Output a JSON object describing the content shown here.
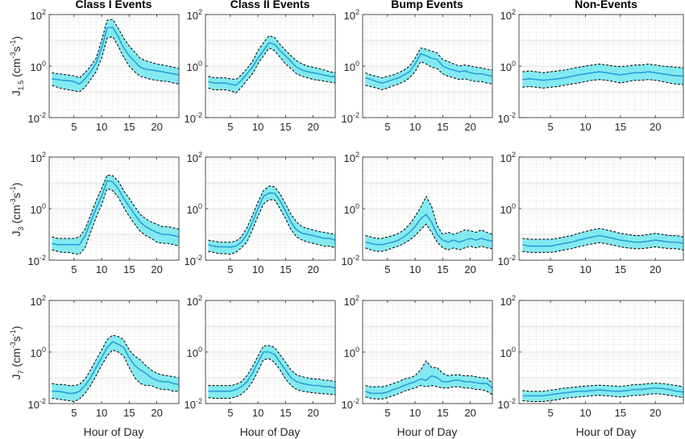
{
  "colors": {
    "band": "#6ee6ee",
    "line": "#2a9fd8",
    "bound": "#000000",
    "grid": "#d9d9d9",
    "axis": "#262626"
  },
  "column_titles": [
    "Class I Events",
    "Class II Events",
    "Bump Events",
    "Non-Events"
  ],
  "row_labels": [
    {
      "main": "J",
      "sub": "1.5",
      "unit_open": " (cm",
      "sup1": "-3",
      "mid": "s",
      "sup2": "-1",
      "close": ")"
    },
    {
      "main": "J",
      "sub": "3",
      "unit_open": " (cm",
      "sup1": "-3",
      "mid": "s",
      "sup2": "-1",
      "close": ")"
    },
    {
      "main": "J",
      "sub": "7",
      "unit_open": " (cm",
      "sup1": "-3",
      "mid": "s",
      "sup2": "-1",
      "close": ")"
    }
  ],
  "xlabel": "Hour of Day",
  "xticks": [
    "5",
    "10",
    "15",
    "20"
  ],
  "yticks": [
    {
      "base": "10",
      "exp": "2"
    },
    {
      "base": "10",
      "exp": "0"
    },
    {
      "base": "10",
      "exp": "-2"
    }
  ],
  "chart_data": {
    "type": "line",
    "x": [
      1,
      2,
      3,
      4,
      5,
      6,
      7,
      8,
      9,
      10,
      11,
      12,
      13,
      14,
      15,
      16,
      17,
      18,
      19,
      20,
      21,
      22,
      23,
      24
    ],
    "xlim": [
      0.5,
      24
    ],
    "ylim": [
      0.01,
      100
    ],
    "yscale": "log",
    "grid": true,
    "panels": [
      [
        {
          "median": [
            0.32,
            0.3,
            0.28,
            0.27,
            0.25,
            0.2,
            0.32,
            0.6,
            1.3,
            5,
            30,
            32,
            14,
            5,
            2.5,
            1.5,
            0.9,
            0.75,
            0.7,
            0.65,
            0.6,
            0.55,
            0.5,
            0.45
          ],
          "upper": [
            0.55,
            0.5,
            0.48,
            0.45,
            0.42,
            0.35,
            0.55,
            1.0,
            2.0,
            10,
            60,
            65,
            30,
            12,
            6,
            3.5,
            2.0,
            1.6,
            1.4,
            1.2,
            1.1,
            1.0,
            0.9,
            0.8
          ],
          "lower": [
            0.18,
            0.15,
            0.13,
            0.12,
            0.11,
            0.1,
            0.15,
            0.3,
            0.6,
            2,
            12,
            14,
            6,
            2.2,
            1.0,
            0.6,
            0.4,
            0.35,
            0.3,
            0.28,
            0.26,
            0.25,
            0.22,
            0.2
          ]
        },
        {
          "median": [
            0.25,
            0.22,
            0.22,
            0.22,
            0.2,
            0.18,
            0.28,
            0.5,
            0.9,
            2,
            4,
            8,
            7,
            4,
            2.5,
            1.5,
            0.9,
            0.7,
            0.6,
            0.55,
            0.5,
            0.45,
            0.4,
            0.38
          ],
          "upper": [
            0.4,
            0.35,
            0.35,
            0.35,
            0.32,
            0.3,
            0.45,
            0.8,
            1.5,
            4,
            8,
            15,
            13,
            7,
            4,
            2.5,
            1.6,
            1.2,
            1.0,
            0.9,
            0.8,
            0.7,
            0.6,
            0.55
          ],
          "lower": [
            0.14,
            0.12,
            0.12,
            0.12,
            0.11,
            0.09,
            0.15,
            0.28,
            0.5,
            1.2,
            2.5,
            5,
            4,
            2.2,
            1.2,
            0.8,
            0.5,
            0.4,
            0.35,
            0.3,
            0.28,
            0.26,
            0.24,
            0.22
          ]
        },
        {
          "median": [
            0.35,
            0.3,
            0.25,
            0.22,
            0.25,
            0.3,
            0.35,
            0.45,
            0.6,
            1.2,
            3,
            2.5,
            2,
            1.8,
            1,
            0.8,
            0.7,
            0.6,
            0.65,
            0.55,
            0.5,
            0.5,
            0.45,
            0.4
          ],
          "upper": [
            0.55,
            0.45,
            0.4,
            0.35,
            0.4,
            0.45,
            0.55,
            0.7,
            1.0,
            2.0,
            5,
            4.5,
            3.8,
            3.2,
            1.8,
            1.5,
            1.2,
            1.0,
            1.1,
            1.0,
            0.9,
            0.85,
            0.75,
            0.7
          ],
          "lower": [
            0.18,
            0.16,
            0.14,
            0.12,
            0.14,
            0.17,
            0.2,
            0.25,
            0.35,
            0.6,
            1.5,
            1.2,
            0.9,
            0.8,
            0.5,
            0.4,
            0.35,
            0.3,
            0.32,
            0.28,
            0.25,
            0.25,
            0.22,
            0.2
          ]
        },
        {
          "median": [
            0.3,
            0.32,
            0.3,
            0.28,
            0.3,
            0.32,
            0.35,
            0.4,
            0.45,
            0.5,
            0.55,
            0.6,
            0.55,
            0.5,
            0.45,
            0.5,
            0.55,
            0.55,
            0.6,
            0.55,
            0.5,
            0.45,
            0.42,
            0.4
          ],
          "upper": [
            0.6,
            0.65,
            0.6,
            0.55,
            0.6,
            0.65,
            0.7,
            0.8,
            0.9,
            1.0,
            1.1,
            1.2,
            1.1,
            1.0,
            0.95,
            1.0,
            1.1,
            1.1,
            1.2,
            1.1,
            1.0,
            0.95,
            0.9,
            0.85
          ],
          "lower": [
            0.15,
            0.16,
            0.15,
            0.14,
            0.15,
            0.16,
            0.18,
            0.2,
            0.22,
            0.25,
            0.28,
            0.3,
            0.28,
            0.25,
            0.22,
            0.25,
            0.28,
            0.28,
            0.3,
            0.28,
            0.25,
            0.22,
            0.2,
            0.19
          ]
        }
      ],
      [
        {
          "median": [
            0.045,
            0.04,
            0.04,
            0.04,
            0.04,
            0.04,
            0.09,
            0.3,
            1.0,
            3,
            12,
            11,
            6,
            2.5,
            1.2,
            0.6,
            0.3,
            0.2,
            0.15,
            0.12,
            0.1,
            0.1,
            0.09,
            0.08
          ],
          "upper": [
            0.08,
            0.07,
            0.07,
            0.07,
            0.07,
            0.08,
            0.16,
            0.55,
            2.0,
            6,
            20,
            19,
            12,
            5,
            2.5,
            1.2,
            0.6,
            0.4,
            0.3,
            0.25,
            0.2,
            0.2,
            0.18,
            0.16
          ],
          "lower": [
            0.025,
            0.022,
            0.02,
            0.02,
            0.018,
            0.017,
            0.03,
            0.12,
            0.45,
            1.4,
            6,
            5,
            2.8,
            1.1,
            0.5,
            0.25,
            0.13,
            0.09,
            0.07,
            0.05,
            0.045,
            0.045,
            0.04,
            0.035
          ]
        },
        {
          "median": [
            0.04,
            0.035,
            0.033,
            0.033,
            0.032,
            0.035,
            0.05,
            0.1,
            0.3,
            1,
            3,
            4,
            4,
            2,
            0.8,
            0.3,
            0.15,
            0.11,
            0.1,
            0.09,
            0.08,
            0.07,
            0.07,
            0.06
          ],
          "upper": [
            0.06,
            0.055,
            0.05,
            0.05,
            0.05,
            0.055,
            0.08,
            0.18,
            0.55,
            1.8,
            5,
            7.5,
            7,
            3.8,
            1.5,
            0.6,
            0.3,
            0.2,
            0.17,
            0.15,
            0.13,
            0.12,
            0.11,
            0.1
          ],
          "lower": [
            0.022,
            0.02,
            0.018,
            0.018,
            0.017,
            0.02,
            0.03,
            0.05,
            0.15,
            0.5,
            1.5,
            2.2,
            2.2,
            1.0,
            0.4,
            0.15,
            0.08,
            0.06,
            0.05,
            0.045,
            0.04,
            0.035,
            0.035,
            0.03
          ]
        },
        {
          "median": [
            0.05,
            0.045,
            0.04,
            0.04,
            0.045,
            0.05,
            0.06,
            0.08,
            0.12,
            0.2,
            0.4,
            0.6,
            0.3,
            0.1,
            0.06,
            0.05,
            0.06,
            0.05,
            0.06,
            0.07,
            0.06,
            0.07,
            0.06,
            0.055
          ],
          "upper": [
            0.09,
            0.08,
            0.07,
            0.07,
            0.08,
            0.09,
            0.11,
            0.15,
            0.25,
            0.5,
            1.1,
            3.0,
            1.2,
            0.22,
            0.1,
            0.12,
            0.1,
            0.12,
            0.15,
            0.14,
            0.12,
            0.15,
            0.12,
            0.1
          ],
          "lower": [
            0.03,
            0.025,
            0.022,
            0.022,
            0.025,
            0.03,
            0.035,
            0.045,
            0.06,
            0.09,
            0.15,
            0.25,
            0.12,
            0.05,
            0.03,
            0.025,
            0.03,
            0.025,
            0.03,
            0.035,
            0.03,
            0.035,
            0.03,
            0.028
          ]
        },
        {
          "median": [
            0.04,
            0.035,
            0.035,
            0.035,
            0.035,
            0.04,
            0.045,
            0.05,
            0.06,
            0.07,
            0.08,
            0.09,
            0.08,
            0.07,
            0.06,
            0.055,
            0.05,
            0.05,
            0.055,
            0.06,
            0.055,
            0.05,
            0.05,
            0.045
          ],
          "upper": [
            0.07,
            0.065,
            0.065,
            0.065,
            0.065,
            0.07,
            0.08,
            0.09,
            0.11,
            0.13,
            0.15,
            0.17,
            0.15,
            0.13,
            0.11,
            0.1,
            0.09,
            0.09,
            0.1,
            0.11,
            0.1,
            0.09,
            0.09,
            0.08
          ],
          "lower": [
            0.022,
            0.02,
            0.02,
            0.02,
            0.02,
            0.022,
            0.025,
            0.028,
            0.033,
            0.038,
            0.043,
            0.048,
            0.043,
            0.038,
            0.033,
            0.03,
            0.028,
            0.028,
            0.03,
            0.033,
            0.03,
            0.028,
            0.028,
            0.025
          ]
        }
      ],
      [
        {
          "median": [
            0.03,
            0.03,
            0.028,
            0.025,
            0.025,
            0.03,
            0.05,
            0.1,
            0.25,
            0.6,
            1.5,
            2.5,
            2,
            1.5,
            0.6,
            0.3,
            0.2,
            0.15,
            0.1,
            0.08,
            0.07,
            0.07,
            0.06,
            0.055
          ],
          "upper": [
            0.06,
            0.055,
            0.055,
            0.05,
            0.05,
            0.055,
            0.09,
            0.2,
            0.5,
            1.2,
            3.0,
            4.5,
            4,
            3.0,
            1.2,
            0.7,
            0.5,
            0.3,
            0.2,
            0.15,
            0.13,
            0.12,
            0.11,
            0.1
          ],
          "lower": [
            0.016,
            0.015,
            0.014,
            0.013,
            0.012,
            0.015,
            0.025,
            0.05,
            0.12,
            0.3,
            0.7,
            1.2,
            1.0,
            0.7,
            0.25,
            0.1,
            0.06,
            0.05,
            0.05,
            0.04,
            0.035,
            0.035,
            0.03,
            0.03
          ]
        },
        {
          "median": [
            0.03,
            0.03,
            0.03,
            0.03,
            0.03,
            0.035,
            0.045,
            0.07,
            0.15,
            0.4,
            1.0,
            1.0,
            0.8,
            0.4,
            0.2,
            0.1,
            0.07,
            0.06,
            0.055,
            0.05,
            0.05,
            0.045,
            0.045,
            0.04
          ],
          "upper": [
            0.05,
            0.05,
            0.05,
            0.05,
            0.05,
            0.055,
            0.07,
            0.12,
            0.27,
            0.7,
            1.7,
            1.8,
            1.5,
            0.8,
            0.4,
            0.2,
            0.13,
            0.11,
            0.1,
            0.09,
            0.09,
            0.08,
            0.08,
            0.07
          ],
          "lower": [
            0.017,
            0.016,
            0.016,
            0.016,
            0.016,
            0.018,
            0.023,
            0.035,
            0.07,
            0.18,
            0.5,
            0.55,
            0.4,
            0.2,
            0.09,
            0.05,
            0.035,
            0.03,
            0.028,
            0.026,
            0.025,
            0.024,
            0.023,
            0.022
          ]
        },
        {
          "median": [
            0.03,
            0.025,
            0.025,
            0.025,
            0.028,
            0.035,
            0.04,
            0.05,
            0.06,
            0.07,
            0.09,
            0.08,
            0.12,
            0.1,
            0.07,
            0.07,
            0.08,
            0.08,
            0.07,
            0.07,
            0.065,
            0.06,
            0.06,
            0.04
          ],
          "upper": [
            0.05,
            0.045,
            0.045,
            0.045,
            0.05,
            0.06,
            0.07,
            0.09,
            0.1,
            0.12,
            0.2,
            0.45,
            0.25,
            0.25,
            0.15,
            0.12,
            0.13,
            0.13,
            0.12,
            0.12,
            0.11,
            0.1,
            0.1,
            0.06
          ],
          "lower": [
            0.018,
            0.016,
            0.015,
            0.015,
            0.017,
            0.02,
            0.024,
            0.03,
            0.035,
            0.04,
            0.05,
            0.045,
            0.05,
            0.045,
            0.04,
            0.04,
            0.045,
            0.045,
            0.04,
            0.04,
            0.035,
            0.035,
            0.03,
            0.022
          ]
        },
        {
          "median": [
            0.02,
            0.02,
            0.02,
            0.02,
            0.022,
            0.024,
            0.026,
            0.028,
            0.03,
            0.03,
            0.032,
            0.034,
            0.032,
            0.03,
            0.03,
            0.032,
            0.035,
            0.035,
            0.038,
            0.04,
            0.038,
            0.035,
            0.03,
            0.028
          ],
          "upper": [
            0.032,
            0.03,
            0.03,
            0.03,
            0.033,
            0.036,
            0.04,
            0.042,
            0.045,
            0.048,
            0.05,
            0.052,
            0.05,
            0.048,
            0.046,
            0.05,
            0.055,
            0.055,
            0.06,
            0.062,
            0.06,
            0.055,
            0.05,
            0.045
          ],
          "lower": [
            0.013,
            0.012,
            0.012,
            0.012,
            0.013,
            0.014,
            0.016,
            0.017,
            0.018,
            0.019,
            0.02,
            0.021,
            0.02,
            0.019,
            0.018,
            0.019,
            0.021,
            0.021,
            0.023,
            0.024,
            0.023,
            0.021,
            0.019,
            0.017
          ]
        }
      ]
    ]
  }
}
